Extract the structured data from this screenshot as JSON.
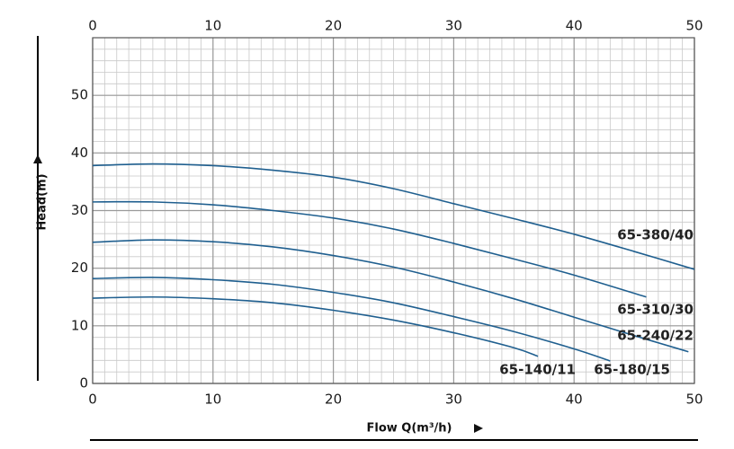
{
  "chart_data": {
    "type": "line",
    "x_label": "Flow Q(m³/h)",
    "y_label": "Head(m)",
    "xlim": [
      0,
      50
    ],
    "ylim": [
      0,
      60
    ],
    "xticks": [
      0,
      10,
      20,
      30,
      40,
      50
    ],
    "yticks": [
      0,
      10,
      20,
      30,
      40,
      50
    ],
    "grid": true,
    "series": [
      {
        "name": "65-380/40",
        "color": "#1f5f8f",
        "x": [
          0,
          5,
          10,
          15,
          20,
          25,
          30,
          35,
          40,
          45,
          50
        ],
        "values": [
          37.8,
          38.1,
          37.8,
          37.0,
          35.8,
          33.8,
          31.2,
          28.6,
          25.9,
          22.9,
          19.8
        ]
      },
      {
        "name": "65-310/30",
        "color": "#1f5f8f",
        "x": [
          0,
          5,
          10,
          15,
          20,
          25,
          30,
          35,
          40,
          46
        ],
        "values": [
          31.5,
          31.5,
          31.0,
          30.0,
          28.7,
          26.8,
          24.3,
          21.6,
          18.8,
          15.0
        ]
      },
      {
        "name": "65-240/22",
        "color": "#1f5f8f",
        "x": [
          0,
          5,
          10,
          15,
          20,
          25,
          30,
          35,
          40,
          45,
          49.5
        ],
        "values": [
          24.5,
          24.9,
          24.6,
          23.7,
          22.2,
          20.2,
          17.6,
          14.7,
          11.5,
          8.3,
          5.5
        ]
      },
      {
        "name": "65-180/15",
        "color": "#1f5f8f",
        "x": [
          0,
          5,
          10,
          15,
          20,
          25,
          30,
          35,
          40,
          43
        ],
        "values": [
          18.2,
          18.4,
          18.0,
          17.2,
          15.8,
          14.0,
          11.6,
          9.0,
          6.0,
          3.9
        ]
      },
      {
        "name": "65-140/11",
        "color": "#1f5f8f",
        "x": [
          0,
          5,
          10,
          15,
          20,
          25,
          30,
          35,
          37
        ],
        "values": [
          14.8,
          15.0,
          14.7,
          14.0,
          12.7,
          11.0,
          8.8,
          6.2,
          4.7
        ]
      }
    ]
  }
}
